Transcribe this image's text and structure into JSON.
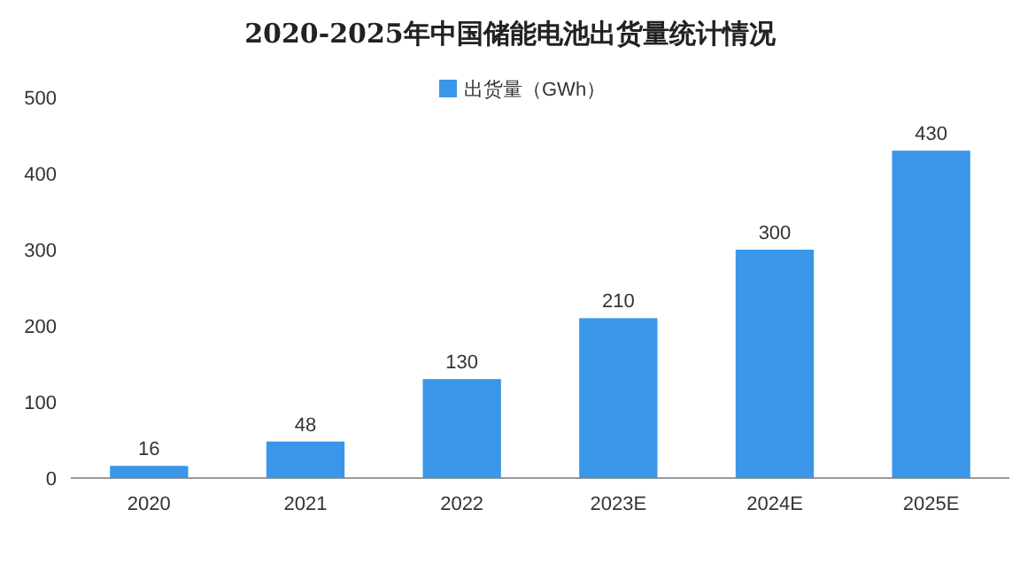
{
  "chart_data": {
    "type": "bar",
    "title": "2020-2025年中国储能电池出货量统计情况",
    "categories": [
      "2020",
      "2021",
      "2022",
      "2023E",
      "2024E",
      "2025E"
    ],
    "series": [
      {
        "name": "出货量（GWh）",
        "color": "#3a96e8",
        "values": [
          16,
          48,
          130,
          210,
          300,
          430
        ]
      }
    ],
    "ylim": [
      0,
      500
    ],
    "yticks": [
      0,
      100,
      200,
      300,
      400,
      500
    ],
    "data_labels": true,
    "legend": "top"
  }
}
